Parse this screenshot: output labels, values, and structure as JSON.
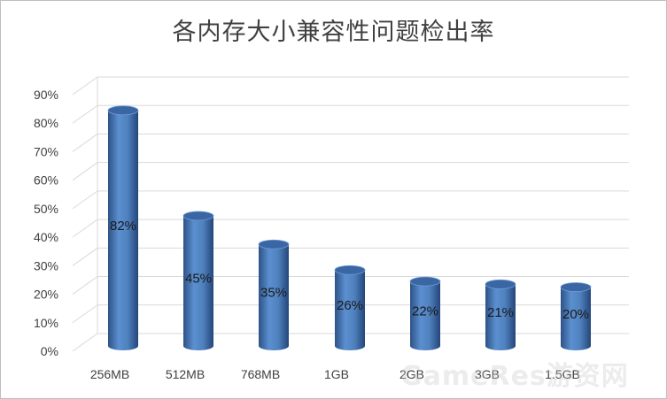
{
  "chart_data": {
    "type": "bar",
    "style": "3d-cylinder",
    "title": "各内存大小兼容性问题检出率",
    "categories": [
      "256MB",
      "512MB",
      "768MB",
      "1GB",
      "2GB",
      "3GB",
      "1.5GB"
    ],
    "values": [
      82,
      45,
      35,
      26,
      22,
      21,
      20
    ],
    "value_labels": [
      "82%",
      "45%",
      "35%",
      "26%",
      "22%",
      "21%",
      "20%"
    ],
    "y_ticks": [
      "0%",
      "10%",
      "20%",
      "30%",
      "40%",
      "50%",
      "60%",
      "70%",
      "80%",
      "90%"
    ],
    "ylim": [
      0,
      90
    ],
    "grid": true,
    "legend": "none",
    "colors": {
      "bar": "#4f81bd",
      "bar_dark": "#2d5286",
      "bar_top": "#3a67a4",
      "grid": "#d9d9d9",
      "text": "#404040"
    }
  },
  "watermark": "GameRes游资网"
}
